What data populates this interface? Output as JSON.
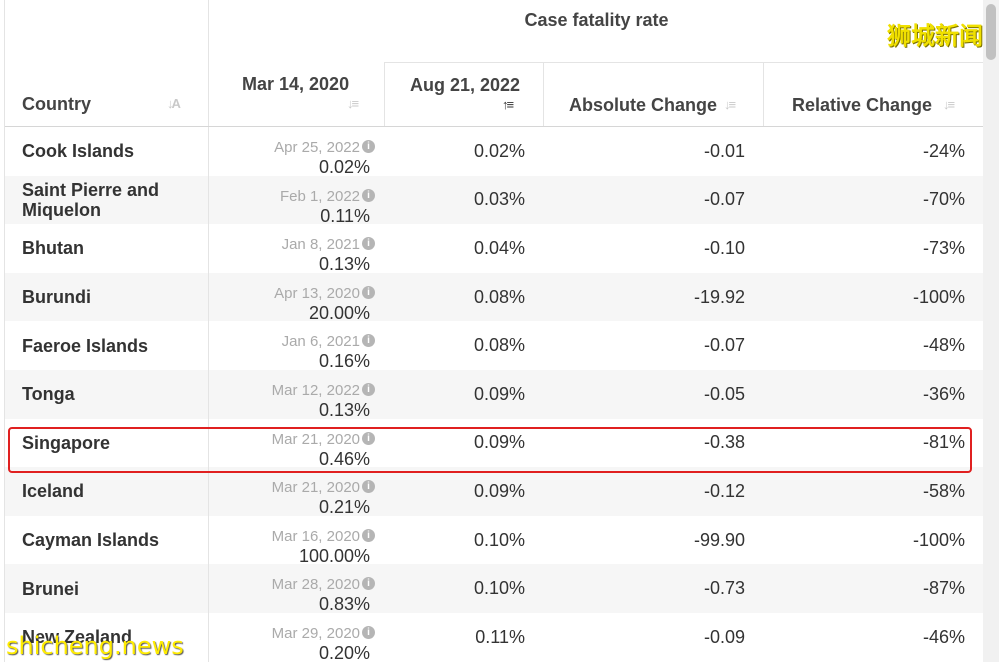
{
  "table": {
    "group_title": "Case fatality rate",
    "headers": {
      "country": "Country",
      "start_date": "Mar 14, 2020",
      "end_date": "Aug 21, 2022",
      "absolute_change": "Absolute Change",
      "relative_change": "Relative Change"
    },
    "rows": [
      {
        "country": "Cook Islands",
        "date": "Apr 25, 2022",
        "start_value": "0.02%",
        "end_value": "0.02%",
        "abs": "-0.01",
        "rel": "-24%"
      },
      {
        "country": "Saint Pierre and Miquelon",
        "date": "Feb 1, 2022",
        "start_value": "0.11%",
        "end_value": "0.03%",
        "abs": "-0.07",
        "rel": "-70%"
      },
      {
        "country": "Bhutan",
        "date": "Jan 8, 2021",
        "start_value": "0.13%",
        "end_value": "0.04%",
        "abs": "-0.10",
        "rel": "-73%"
      },
      {
        "country": "Burundi",
        "date": "Apr 13, 2020",
        "start_value": "20.00%",
        "end_value": "0.08%",
        "abs": "-19.92",
        "rel": "-100%"
      },
      {
        "country": "Faeroe Islands",
        "date": "Jan 6, 2021",
        "start_value": "0.16%",
        "end_value": "0.08%",
        "abs": "-0.07",
        "rel": "-48%"
      },
      {
        "country": "Tonga",
        "date": "Mar 12, 2022",
        "start_value": "0.13%",
        "end_value": "0.09%",
        "abs": "-0.05",
        "rel": "-36%"
      },
      {
        "country": "Singapore",
        "date": "Mar 21, 2020",
        "start_value": "0.46%",
        "end_value": "0.09%",
        "abs": "-0.38",
        "rel": "-81%"
      },
      {
        "country": "Iceland",
        "date": "Mar 21, 2020",
        "start_value": "0.21%",
        "end_value": "0.09%",
        "abs": "-0.12",
        "rel": "-58%"
      },
      {
        "country": "Cayman Islands",
        "date": "Mar 16, 2020",
        "start_value": "100.00%",
        "end_value": "0.10%",
        "abs": "-99.90",
        "rel": "-100%"
      },
      {
        "country": "Brunei",
        "date": "Mar 28, 2020",
        "start_value": "0.83%",
        "end_value": "0.10%",
        "abs": "-0.73",
        "rel": "-87%"
      },
      {
        "country": "New Zealand",
        "date": "Mar 29, 2020",
        "start_value": "0.20%",
        "end_value": "0.11%",
        "abs": "-0.09",
        "rel": "-46%"
      }
    ]
  },
  "highlight_country": "Singapore",
  "watermarks": {
    "top_right": "狮城新闻",
    "bottom_left": "shicheng.news"
  },
  "colors": {
    "highlight_border": "#e02020",
    "row_alt": "#f6f6f6",
    "watermark": "#f0e000"
  }
}
